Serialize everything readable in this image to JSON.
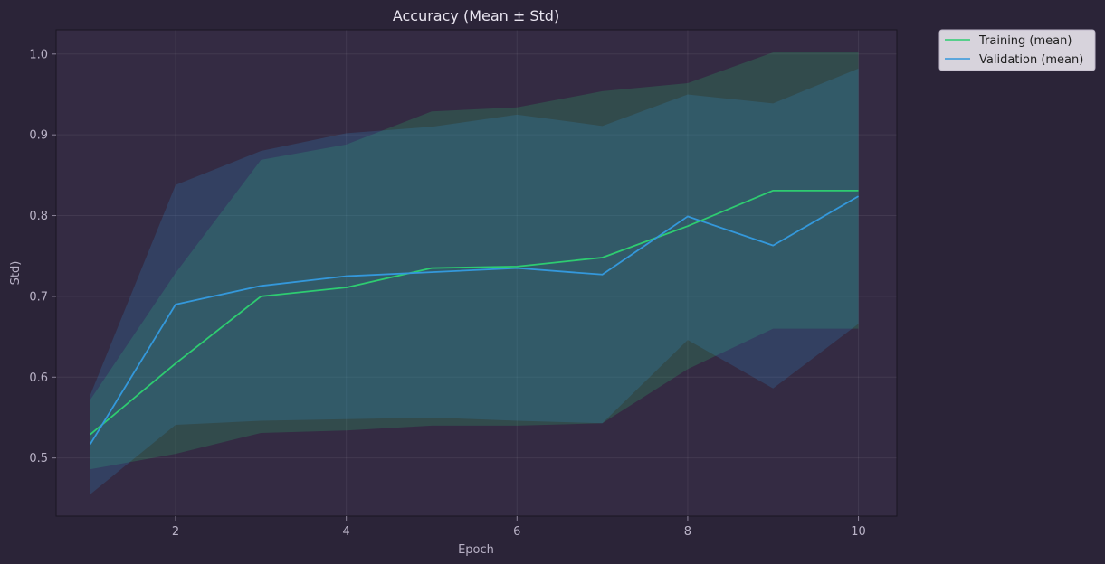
{
  "chart_data": {
    "type": "line",
    "title": "Accuracy (Mean ± Std)",
    "xlabel": "Epoch",
    "ylabel": "Std)",
    "x": [
      1,
      2,
      3,
      4,
      5,
      6,
      7,
      8,
      9,
      10
    ],
    "xticks": [
      "2",
      "4",
      "6",
      "8",
      "10"
    ],
    "yticks": [
      "0.5",
      "0.6",
      "0.7",
      "0.8",
      "0.9",
      "1.0"
    ],
    "xlim": [
      0.6,
      10.45
    ],
    "ylim": [
      0.428,
      1.03
    ],
    "grid": true,
    "legend_position": "outside-top-right",
    "series": [
      {
        "name": "Training (mean)",
        "color": "#2ecc71",
        "mean": [
          0.529,
          0.617,
          0.7,
          0.711,
          0.735,
          0.737,
          0.748,
          0.787,
          0.831,
          0.831
        ],
        "lower": [
          0.486,
          0.505,
          0.531,
          0.534,
          0.54,
          0.54,
          0.543,
          0.61,
          0.66,
          0.66
        ],
        "upper": [
          0.572,
          0.729,
          0.869,
          0.888,
          0.929,
          0.934,
          0.954,
          0.964,
          1.002,
          1.002
        ]
      },
      {
        "name": "Validation (mean)",
        "color": "#3498db",
        "mean": [
          0.517,
          0.69,
          0.713,
          0.725,
          0.73,
          0.735,
          0.727,
          0.799,
          0.763,
          0.824
        ],
        "lower": [
          0.455,
          0.541,
          0.546,
          0.548,
          0.55,
          0.546,
          0.543,
          0.646,
          0.586,
          0.666
        ],
        "upper": [
          0.578,
          0.838,
          0.88,
          0.902,
          0.91,
          0.925,
          0.911,
          0.95,
          0.939,
          0.982
        ]
      }
    ]
  }
}
